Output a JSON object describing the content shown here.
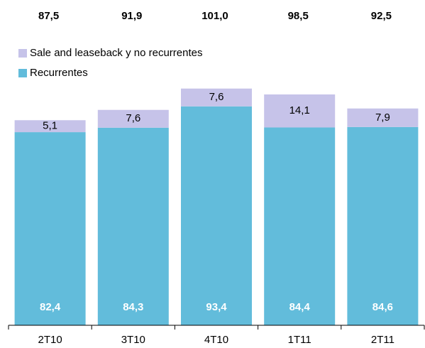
{
  "chart_data": {
    "type": "stacked_bar",
    "categories": [
      "2T10",
      "3T10",
      "4T10",
      "1T11",
      "2T11"
    ],
    "series": [
      {
        "name": "Recurrentes",
        "color": "#62bcdb",
        "values": [
          82.4,
          84.3,
          93.4,
          84.4,
          84.6
        ],
        "value_labels": [
          "82,4",
          "84,3",
          "93,4",
          "84,4",
          "84,6"
        ]
      },
      {
        "name": "Sale and leaseback y no recurrentes",
        "color": "#c6c3e9",
        "values": [
          5.1,
          7.6,
          7.6,
          14.1,
          7.9
        ],
        "value_labels": [
          "5,1",
          "7,6",
          "7,6",
          "14,1",
          "7,9"
        ]
      }
    ],
    "totals": {
      "values": [
        87.5,
        91.9,
        101.0,
        98.5,
        92.5
      ],
      "value_labels": [
        "87,5",
        "91,9",
        "101,0",
        "98,5",
        "92,5"
      ]
    }
  }
}
